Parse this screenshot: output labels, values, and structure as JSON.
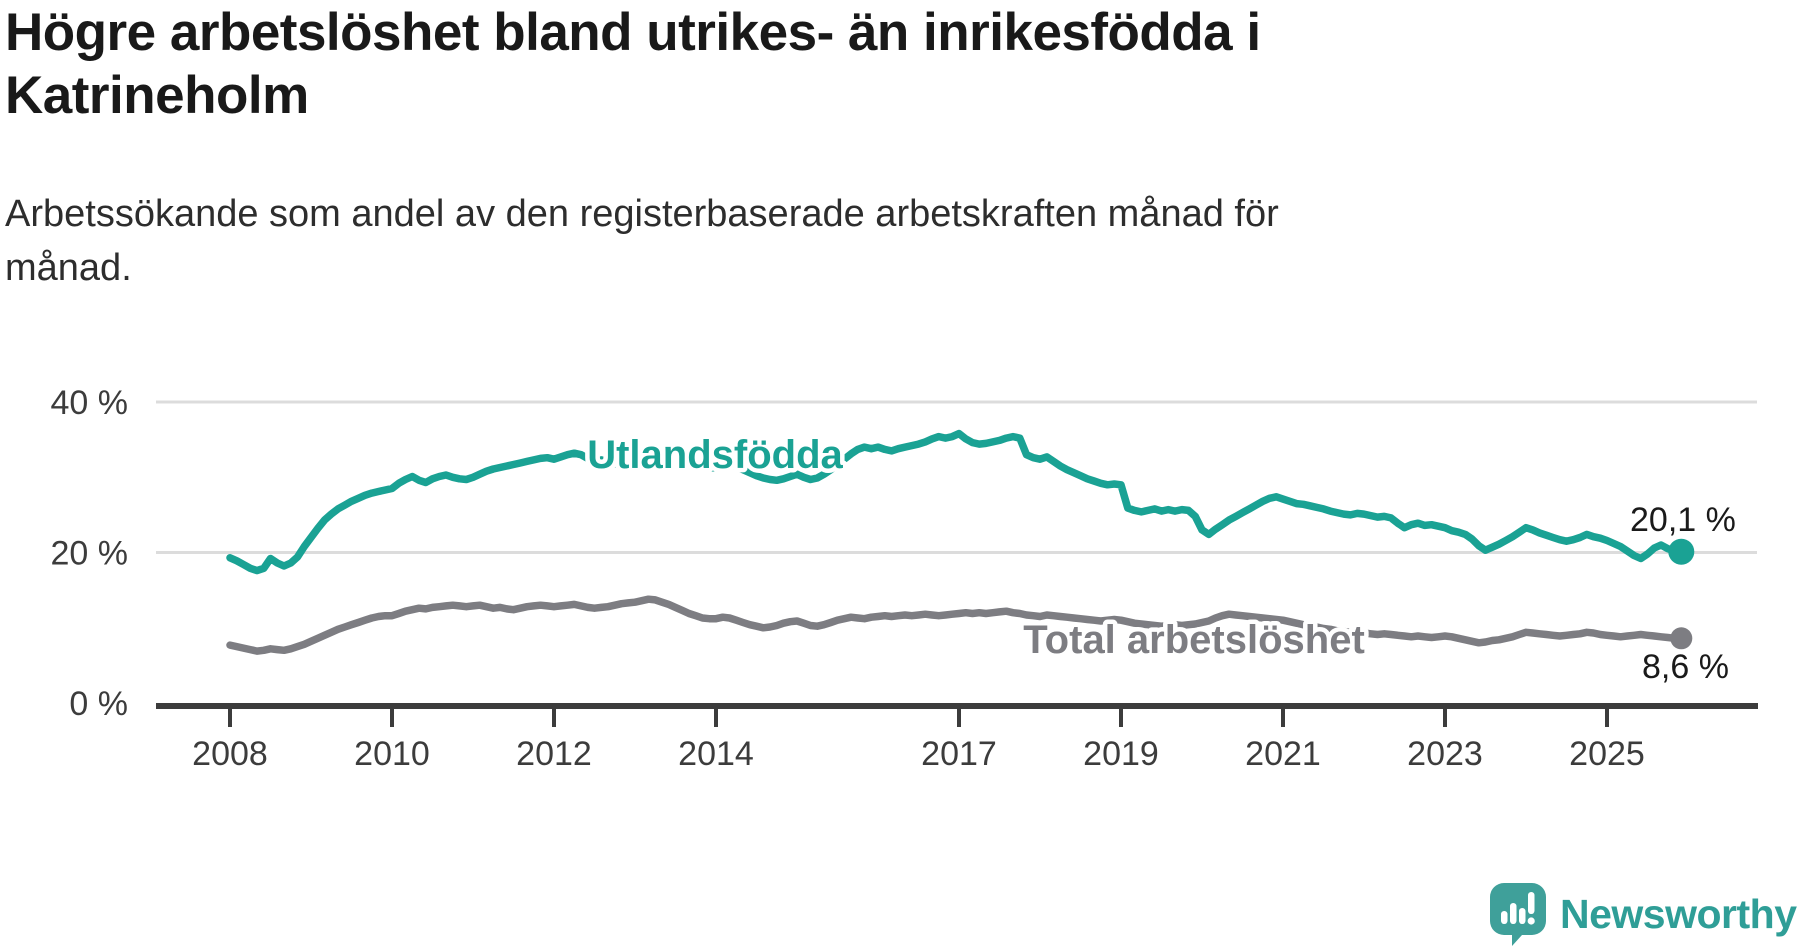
{
  "header": {
    "title_line1": "Högre arbetslöshet bland utrikes- än inrikesfödda i",
    "title_line2": "Katrineholm",
    "subtitle_line1": "Arbetssökande som andel av den registerbaserade arbetskraften månad för",
    "subtitle_line2": "månad."
  },
  "chart_data": {
    "type": "line",
    "unit": "%",
    "x_start_year": 2008,
    "x_step_months": 1,
    "x_ticks": [
      2008,
      2010,
      2012,
      2014,
      2017,
      2019,
      2021,
      2023,
      2025
    ],
    "y_ticks": [
      {
        "value": 0,
        "label": "0 %"
      },
      {
        "value": 20,
        "label": "20 %"
      },
      {
        "value": 40,
        "label": "40 %"
      }
    ],
    "ylim": [
      0,
      42
    ],
    "grid": "horizontal",
    "series": [
      {
        "name": "Utlandsfödda",
        "color": "#1aa294",
        "end_label": "20,1 %",
        "end_value": 20.1,
        "values": [
          19.3,
          18.9,
          18.4,
          17.9,
          17.6,
          17.9,
          19.2,
          18.6,
          18.2,
          18.6,
          19.4,
          20.8,
          22.0,
          23.2,
          24.3,
          25.1,
          25.8,
          26.3,
          26.8,
          27.2,
          27.6,
          27.9,
          28.1,
          28.3,
          28.5,
          29.2,
          29.7,
          30.1,
          29.6,
          29.3,
          29.8,
          30.1,
          30.3,
          30.0,
          29.8,
          29.7,
          30.0,
          30.4,
          30.8,
          31.1,
          31.3,
          31.5,
          31.7,
          31.9,
          32.1,
          32.3,
          32.5,
          32.6,
          32.4,
          32.7,
          33.0,
          33.2,
          33.0,
          32.5,
          32.0,
          32.3,
          32.1,
          31.8,
          31.6,
          31.5,
          31.5,
          31.9,
          32.3,
          32.7,
          33.0,
          32.8,
          32.4,
          32.0,
          31.7,
          31.5,
          31.3,
          31.2,
          31.3,
          31.6,
          31.8,
          31.4,
          31.0,
          30.6,
          30.2,
          29.9,
          29.7,
          29.6,
          29.8,
          30.1,
          30.4,
          30.0,
          29.7,
          29.9,
          30.4,
          31.0,
          31.7,
          32.4,
          33.1,
          33.7,
          34.0,
          33.8,
          34.0,
          33.7,
          33.5,
          33.8,
          34.0,
          34.2,
          34.4,
          34.7,
          35.1,
          35.4,
          35.2,
          35.4,
          35.8,
          35.1,
          34.6,
          34.4,
          34.5,
          34.7,
          34.9,
          35.2,
          35.4,
          35.2,
          33.0,
          32.6,
          32.4,
          32.7,
          32.1,
          31.5,
          31.0,
          30.6,
          30.2,
          29.8,
          29.5,
          29.2,
          29.0,
          29.1,
          29.0,
          25.9,
          25.6,
          25.4,
          25.6,
          25.8,
          25.5,
          25.7,
          25.5,
          25.7,
          25.6,
          24.8,
          23.0,
          22.4,
          23.1,
          23.7,
          24.3,
          24.8,
          25.3,
          25.8,
          26.3,
          26.8,
          27.2,
          27.4,
          27.1,
          26.8,
          26.5,
          26.4,
          26.2,
          26.0,
          25.8,
          25.5,
          25.3,
          25.1,
          25.0,
          25.2,
          25.1,
          24.9,
          24.7,
          24.8,
          24.6,
          23.9,
          23.3,
          23.7,
          23.9,
          23.6,
          23.7,
          23.5,
          23.3,
          22.9,
          22.7,
          22.4,
          21.8,
          20.9,
          20.3,
          20.7,
          21.1,
          21.6,
          22.1,
          22.7,
          23.3,
          23.0,
          22.6,
          22.3,
          22.0,
          21.7,
          21.5,
          21.7,
          22.0,
          22.4,
          22.1,
          21.9,
          21.6,
          21.2,
          20.8,
          20.2,
          19.6,
          19.2,
          19.8,
          20.6,
          21.0,
          20.5,
          20.2,
          20.1
        ]
      },
      {
        "name": "Total arbetslöshet",
        "color": "#7d7d82",
        "end_label": "8,6 %",
        "end_value": 8.6,
        "values": [
          7.7,
          7.5,
          7.3,
          7.1,
          6.9,
          7.0,
          7.2,
          7.1,
          7.0,
          7.2,
          7.5,
          7.8,
          8.2,
          8.6,
          9.0,
          9.4,
          9.8,
          10.1,
          10.4,
          10.7,
          11.0,
          11.3,
          11.5,
          11.6,
          11.6,
          11.9,
          12.2,
          12.4,
          12.6,
          12.5,
          12.7,
          12.8,
          12.9,
          13.0,
          12.9,
          12.8,
          12.9,
          13.0,
          12.8,
          12.6,
          12.7,
          12.5,
          12.4,
          12.6,
          12.8,
          12.9,
          13.0,
          12.9,
          12.8,
          12.9,
          13.0,
          13.1,
          12.9,
          12.7,
          12.6,
          12.7,
          12.8,
          13.0,
          13.2,
          13.3,
          13.4,
          13.6,
          13.8,
          13.7,
          13.4,
          13.1,
          12.7,
          12.3,
          11.9,
          11.6,
          11.3,
          11.2,
          11.2,
          11.4,
          11.3,
          11.0,
          10.7,
          10.4,
          10.2,
          10.0,
          10.1,
          10.3,
          10.6,
          10.8,
          10.9,
          10.6,
          10.3,
          10.2,
          10.4,
          10.7,
          11.0,
          11.2,
          11.4,
          11.3,
          11.2,
          11.4,
          11.5,
          11.6,
          11.5,
          11.6,
          11.7,
          11.6,
          11.7,
          11.8,
          11.7,
          11.6,
          11.7,
          11.8,
          11.9,
          12.0,
          11.9,
          12.0,
          11.9,
          12.0,
          12.1,
          12.2,
          12.0,
          11.9,
          11.7,
          11.6,
          11.5,
          11.7,
          11.6,
          11.5,
          11.4,
          11.3,
          11.2,
          11.1,
          11.0,
          10.9,
          11.0,
          11.1,
          11.0,
          10.8,
          10.6,
          10.5,
          10.4,
          10.3,
          10.2,
          10.3,
          10.4,
          10.3,
          10.4,
          10.5,
          10.7,
          10.9,
          11.3,
          11.6,
          11.8,
          11.7,
          11.6,
          11.5,
          11.4,
          11.3,
          11.2,
          11.1,
          11.0,
          10.8,
          10.6,
          10.4,
          10.2,
          10.1,
          9.9,
          9.8,
          9.6,
          9.5,
          9.4,
          9.3,
          9.3,
          9.2,
          9.1,
          9.2,
          9.1,
          9.0,
          8.9,
          8.8,
          8.9,
          8.8,
          8.7,
          8.8,
          8.9,
          8.8,
          8.6,
          8.4,
          8.2,
          8.0,
          8.1,
          8.3,
          8.4,
          8.6,
          8.8,
          9.1,
          9.4,
          9.3,
          9.2,
          9.1,
          9.0,
          8.9,
          9.0,
          9.1,
          9.2,
          9.4,
          9.3,
          9.1,
          9.0,
          8.9,
          8.8,
          8.9,
          9.0,
          9.1,
          9.0,
          8.9,
          8.8,
          8.7,
          8.6,
          8.6
        ]
      }
    ]
  },
  "branding": {
    "logo_text": "Newsworthy",
    "logo_color": "#3fa09a",
    "logo_text_color": "#2f9e97"
  },
  "colors": {
    "title": "#191919",
    "subtitle": "#2d2d2d",
    "axis": "#3c3c3c",
    "gridline": "#dcdcdc",
    "background": "#ffffff"
  }
}
